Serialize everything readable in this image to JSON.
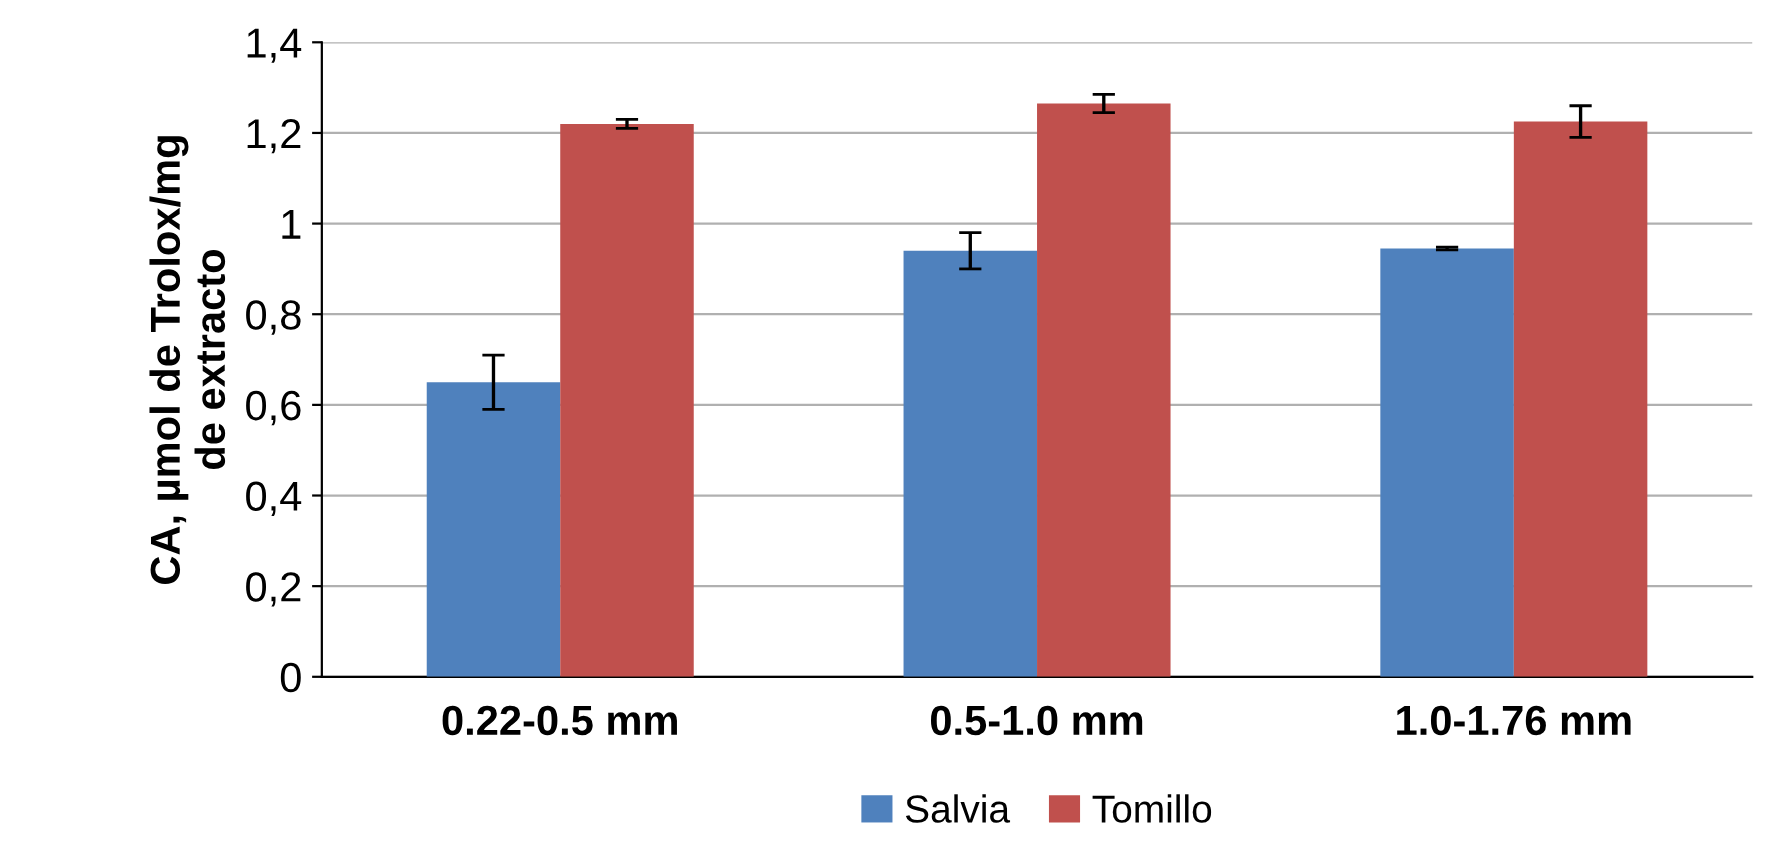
{
  "chart_data": {
    "type": "bar",
    "ylabel": "CA, µmol de Trolox/mg\nde extracto",
    "categories": [
      "0.22-0.5 mm",
      "0.5-1.0 mm",
      "1.0-1.76 mm"
    ],
    "series": [
      {
        "name": "Salvia",
        "color": "#4f81bd",
        "values": [
          0.65,
          0.94,
          0.945
        ],
        "errors": [
          0.06,
          0.04,
          0.003
        ]
      },
      {
        "name": "Tomillo",
        "color": "#c0504d",
        "values": [
          1.22,
          1.265,
          1.225
        ],
        "errors": [
          0.01,
          0.02,
          0.035
        ]
      }
    ],
    "ylim": [
      0,
      1.4
    ],
    "yticks": [
      0,
      {
        "value": 0.2,
        "label": "0,2"
      },
      {
        "value": 0.4,
        "label": "0,4"
      },
      {
        "value": 0.6,
        "label": "0,6"
      },
      {
        "value": 0.8,
        "label": "0,8"
      },
      1,
      {
        "value": 1.2,
        "label": "1,2"
      },
      {
        "value": 1.4,
        "label": "1,4"
      }
    ],
    "grid": "y",
    "legend": "bottom"
  }
}
